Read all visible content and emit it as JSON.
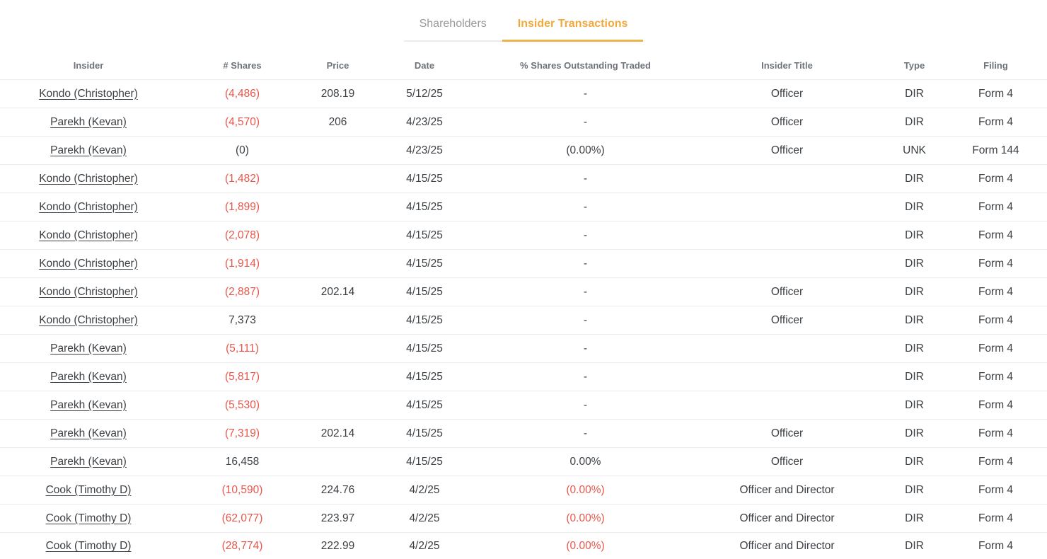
{
  "tabs": {
    "shareholders_label": "Shareholders",
    "insider_transactions_label": "Insider Transactions",
    "active_tab": "Insider Transactions"
  },
  "colors": {
    "accent_tab_text": "#f2a93c",
    "accent_tab_underline": "#ecb349",
    "negative_value": "#e8564b",
    "cell_text": "#3c4044",
    "header_text": "#6e737b",
    "inactive_tab_text": "#97999d",
    "row_border": "#ececec"
  },
  "table": {
    "columns": [
      "Insider",
      "# Shares",
      "Price",
      "Date",
      "% Shares Outstanding Traded",
      "Insider Title",
      "Type",
      "Filing"
    ],
    "rows": [
      {
        "insider": "Kondo (Christopher)",
        "shares": "(4,486)",
        "shares_neg": true,
        "price": "208.19",
        "date": "5/12/25",
        "pct": "-",
        "pct_neg": false,
        "title": "Officer",
        "type": "DIR",
        "filing": "Form 4"
      },
      {
        "insider": "Parekh (Kevan)",
        "shares": "(4,570)",
        "shares_neg": true,
        "price": "206",
        "date": "4/23/25",
        "pct": "-",
        "pct_neg": false,
        "title": "Officer",
        "type": "DIR",
        "filing": "Form 4"
      },
      {
        "insider": "Parekh (Kevan)",
        "shares": "(0)",
        "shares_neg": false,
        "price": "",
        "date": "4/23/25",
        "pct": "(0.00%)",
        "pct_neg": false,
        "title": "Officer",
        "type": "UNK",
        "filing": "Form 144"
      },
      {
        "insider": "Kondo (Christopher)",
        "shares": "(1,482)",
        "shares_neg": true,
        "price": "",
        "date": "4/15/25",
        "pct": "-",
        "pct_neg": false,
        "title": "",
        "type": "DIR",
        "filing": "Form 4"
      },
      {
        "insider": "Kondo (Christopher)",
        "shares": "(1,899)",
        "shares_neg": true,
        "price": "",
        "date": "4/15/25",
        "pct": "-",
        "pct_neg": false,
        "title": "",
        "type": "DIR",
        "filing": "Form 4"
      },
      {
        "insider": "Kondo (Christopher)",
        "shares": "(2,078)",
        "shares_neg": true,
        "price": "",
        "date": "4/15/25",
        "pct": "-",
        "pct_neg": false,
        "title": "",
        "type": "DIR",
        "filing": "Form 4"
      },
      {
        "insider": "Kondo (Christopher)",
        "shares": "(1,914)",
        "shares_neg": true,
        "price": "",
        "date": "4/15/25",
        "pct": "-",
        "pct_neg": false,
        "title": "",
        "type": "DIR",
        "filing": "Form 4"
      },
      {
        "insider": "Kondo (Christopher)",
        "shares": "(2,887)",
        "shares_neg": true,
        "price": "202.14",
        "date": "4/15/25",
        "pct": "-",
        "pct_neg": false,
        "title": "Officer",
        "type": "DIR",
        "filing": "Form 4"
      },
      {
        "insider": "Kondo (Christopher)",
        "shares": "7,373",
        "shares_neg": false,
        "price": "",
        "date": "4/15/25",
        "pct": "-",
        "pct_neg": false,
        "title": "Officer",
        "type": "DIR",
        "filing": "Form 4"
      },
      {
        "insider": "Parekh (Kevan)",
        "shares": "(5,111)",
        "shares_neg": true,
        "price": "",
        "date": "4/15/25",
        "pct": "-",
        "pct_neg": false,
        "title": "",
        "type": "DIR",
        "filing": "Form 4"
      },
      {
        "insider": "Parekh (Kevan)",
        "shares": "(5,817)",
        "shares_neg": true,
        "price": "",
        "date": "4/15/25",
        "pct": "-",
        "pct_neg": false,
        "title": "",
        "type": "DIR",
        "filing": "Form 4"
      },
      {
        "insider": "Parekh (Kevan)",
        "shares": "(5,530)",
        "shares_neg": true,
        "price": "",
        "date": "4/15/25",
        "pct": "-",
        "pct_neg": false,
        "title": "",
        "type": "DIR",
        "filing": "Form 4"
      },
      {
        "insider": "Parekh (Kevan)",
        "shares": "(7,319)",
        "shares_neg": true,
        "price": "202.14",
        "date": "4/15/25",
        "pct": "-",
        "pct_neg": false,
        "title": "Officer",
        "type": "DIR",
        "filing": "Form 4"
      },
      {
        "insider": "Parekh (Kevan)",
        "shares": "16,458",
        "shares_neg": false,
        "price": "",
        "date": "4/15/25",
        "pct": "0.00%",
        "pct_neg": false,
        "title": "Officer",
        "type": "DIR",
        "filing": "Form 4"
      },
      {
        "insider": "Cook (Timothy D)",
        "shares": "(10,590)",
        "shares_neg": true,
        "price": "224.76",
        "date": "4/2/25",
        "pct": "(0.00%)",
        "pct_neg": true,
        "title": "Officer and Director",
        "type": "DIR",
        "filing": "Form 4"
      },
      {
        "insider": "Cook (Timothy D)",
        "shares": "(62,077)",
        "shares_neg": true,
        "price": "223.97",
        "date": "4/2/25",
        "pct": "(0.00%)",
        "pct_neg": true,
        "title": "Officer and Director",
        "type": "DIR",
        "filing": "Form 4"
      },
      {
        "insider": "Cook (Timothy D)",
        "shares": "(28,774)",
        "shares_neg": true,
        "price": "222.99",
        "date": "4/2/25",
        "pct": "(0.00%)",
        "pct_neg": true,
        "title": "Officer and Director",
        "type": "DIR",
        "filing": "Form 4"
      }
    ]
  }
}
